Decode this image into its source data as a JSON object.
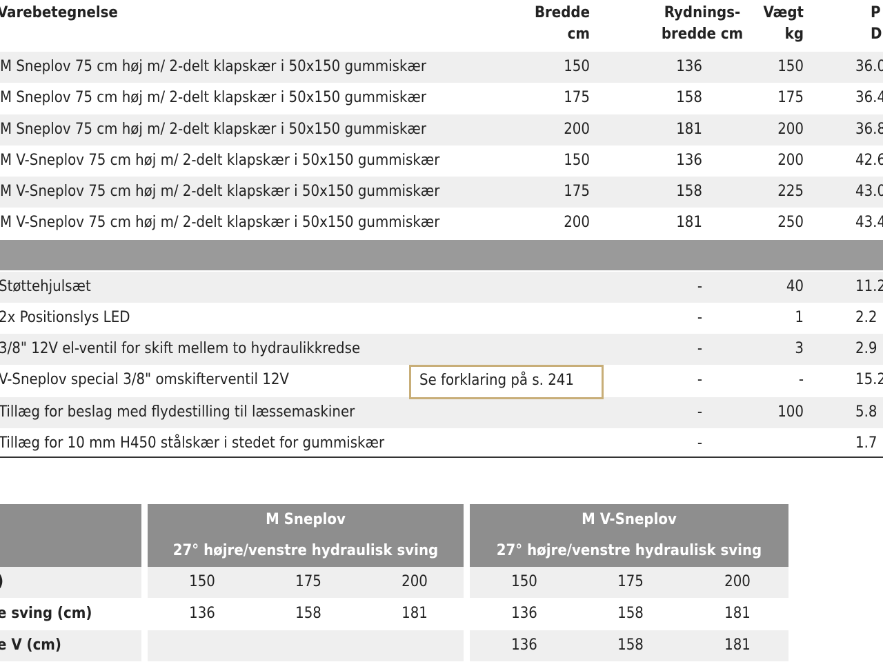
{
  "table": {
    "headers": [
      [
        "Varebetegnelse"
      ],
      [
        "Bredde",
        "cm"
      ],
      [
        "Rydnings-",
        "bredde cm"
      ],
      [
        "Vægt",
        "kg"
      ],
      [
        "P",
        "DK"
      ]
    ],
    "rows": [
      [
        "M Sneplov 75 cm høj m/ 2-delt klapskær i 50x150 gummiskær",
        "150",
        "136",
        "150",
        "36.0"
      ],
      [
        "M Sneplov 75 cm høj m/ 2-delt klapskær i 50x150 gummiskær",
        "175",
        "158",
        "175",
        "36.4"
      ],
      [
        "M Sneplov 75 cm høj m/ 2-delt klapskær i 50x150 gummiskær",
        "200",
        "181",
        "200",
        "36.8"
      ],
      [
        "M V-Sneplov 75 cm høj m/ 2-delt klapskær i 50x150 gummiskær",
        "150",
        "136",
        "200",
        "42.6"
      ],
      [
        "M V-Sneplov 75 cm høj m/ 2-delt klapskær i 50x150 gummiskær",
        "175",
        "158",
        "225",
        "43.0"
      ],
      [
        "M V-Sneplov 75 cm høj m/ 2-delt klapskær i 50x150 gummiskær",
        "200",
        "181",
        "250",
        "43.4"
      ]
    ],
    "accessories": [
      [
        "Støttehjulsæt",
        "-",
        "40",
        "11.2"
      ],
      [
        "2x Positionslys LED",
        "-",
        "1",
        "2.2"
      ],
      [
        "3/8\" 12V el-ventil for skift mellem to hydraulikkredse",
        "-",
        "3",
        "2.9"
      ],
      [
        "V-Sneplov special 3/8\" omskifterventil 12V",
        "-",
        "-",
        "15.2"
      ],
      [
        "Tillæg for beslag med flydestilling til læssemaskiner",
        "-",
        "100",
        "5.8"
      ],
      [
        "Tillæg for 10 mm H450 stålskær i stedet for gummiskær",
        "-",
        "",
        "1.7"
      ]
    ]
  },
  "note": "Se forklaring på s. 241",
  "comparison": {
    "groups": [
      {
        "name": "M Sneplov",
        "subtitle": "27° højre/venstre hydraulisk sving"
      },
      {
        "name": "M V-Sneplov",
        "subtitle": "27° højre/venstre hydraulisk sving"
      }
    ],
    "rows": [
      {
        "label": ")",
        "values": [
          [
            "150",
            "175",
            "200"
          ],
          [
            "150",
            "175",
            "200"
          ]
        ]
      },
      {
        "label": "e sving (cm)",
        "values": [
          [
            "136",
            "158",
            "181"
          ],
          [
            "136",
            "158",
            "181"
          ]
        ]
      },
      {
        "label": "e V (cm)",
        "values": [
          null,
          [
            "136",
            "158",
            "181"
          ]
        ]
      }
    ]
  }
}
